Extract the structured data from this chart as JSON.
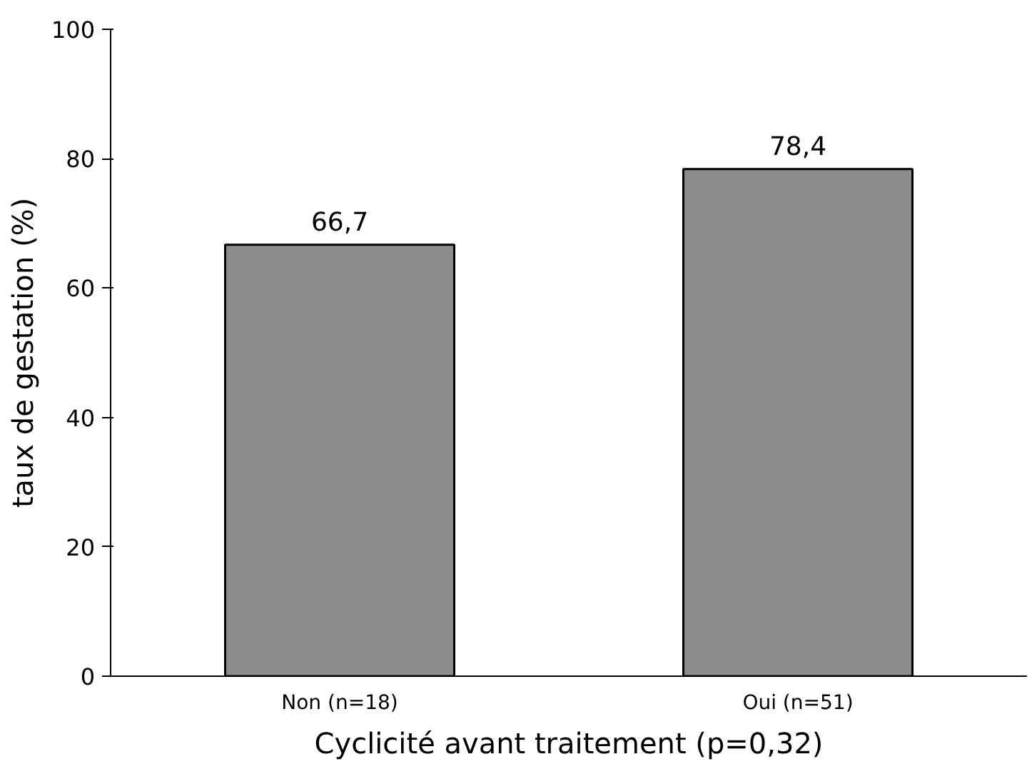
{
  "chart_data": {
    "type": "bar",
    "xlabel": "Cyclicité avant traitement (p=0,32)",
    "ylabel": "taux de gestation (%)",
    "categories": [
      "Non (n=18)",
      "Oui (n=51)"
    ],
    "values": [
      66.7,
      78.4
    ],
    "value_labels": [
      "66,7",
      "78,4"
    ],
    "color": "#8c8c8c",
    "ylim": [
      0,
      100
    ],
    "yticks": [
      0,
      20,
      40,
      60,
      80,
      100
    ],
    "grid": false
  }
}
